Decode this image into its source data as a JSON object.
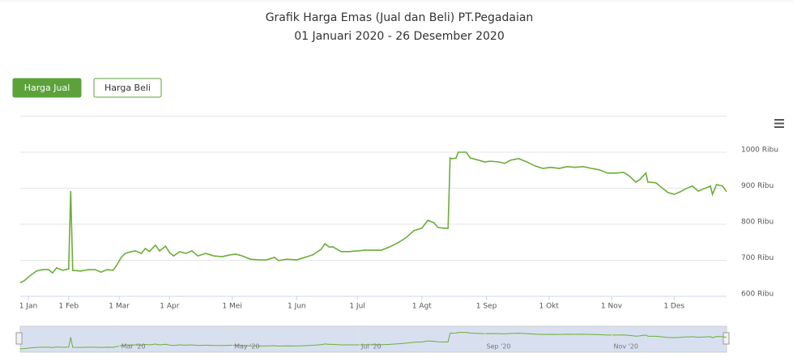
{
  "chart_data": {
    "type": "line",
    "title": "Grafik Harga Emas (Jual dan Beli) PT.Pegadaian",
    "subtitle": "01 Januari 2020 - 26 Desember 2020",
    "buttons": [
      "Harga Jual",
      "Harga Beli"
    ],
    "color": "#6aaf35",
    "x": [
      0,
      2,
      5,
      8,
      11,
      14,
      16,
      18,
      21,
      24,
      25,
      26,
      30,
      34,
      37,
      40,
      43,
      46,
      48,
      50,
      52,
      55,
      57,
      60,
      62,
      64,
      67,
      69,
      72,
      74,
      76,
      79,
      82,
      85,
      88,
      92,
      96,
      100,
      104,
      107,
      110,
      114,
      118,
      122,
      126,
      128,
      132,
      137,
      141,
      145,
      149,
      151,
      153,
      155,
      159,
      163,
      167,
      171,
      175,
      179,
      183,
      187,
      191,
      195,
      199,
      202,
      205,
      207,
      210,
      212,
      213,
      214,
      216,
      217,
      221,
      223,
      227,
      230,
      233,
      237,
      240,
      243,
      247,
      251,
      255,
      259,
      263,
      267,
      271,
      275,
      279,
      283,
      287,
      291,
      295,
      299,
      302,
      305,
      307,
      310,
      311,
      315,
      318,
      321,
      324,
      327,
      330,
      333,
      336,
      339,
      342,
      343,
      345,
      348,
      350
    ],
    "values": [
      638,
      643,
      658,
      670,
      674,
      674,
      665,
      679,
      672,
      676,
      892,
      672,
      670,
      674,
      674,
      667,
      674,
      672,
      688,
      708,
      719,
      724,
      726,
      719,
      733,
      724,
      742,
      726,
      739,
      721,
      712,
      724,
      719,
      726,
      712,
      719,
      712,
      710,
      715,
      717,
      712,
      703,
      701,
      701,
      708,
      699,
      703,
      701,
      708,
      715,
      730,
      746,
      737,
      737,
      724,
      724,
      726,
      728,
      728,
      728,
      737,
      748,
      762,
      782,
      789,
      811,
      804,
      791,
      789,
      789,
      984,
      982,
      984,
      1000,
      1000,
      984,
      978,
      973,
      975,
      973,
      969,
      978,
      982,
      973,
      962,
      955,
      958,
      955,
      960,
      958,
      960,
      955,
      951,
      942,
      942,
      944,
      933,
      917,
      924,
      942,
      917,
      915,
      901,
      888,
      883,
      890,
      899,
      906,
      892,
      899,
      906,
      883,
      910,
      906,
      890
    ],
    "xlim": [
      0,
      350
    ],
    "xticks": [
      {
        "value": 4,
        "label": "1 Jan"
      },
      {
        "value": 24,
        "label": "1 Feb"
      },
      {
        "value": 49,
        "label": "1 Mar"
      },
      {
        "value": 74,
        "label": "1 Apr"
      },
      {
        "value": 105,
        "label": "1 Mei"
      },
      {
        "value": 137,
        "label": "1 Jun"
      },
      {
        "value": 167,
        "label": "1 Jul"
      },
      {
        "value": 199,
        "label": "1 Agt"
      },
      {
        "value": 231,
        "label": "1 Sep"
      },
      {
        "value": 262,
        "label": "1 Okt"
      },
      {
        "value": 293,
        "label": "1 Nov"
      },
      {
        "value": 324,
        "label": "1 Des"
      }
    ],
    "ylim": [
      600,
      1100
    ],
    "yticks": [
      {
        "value": 600,
        "label": "600 Ribu"
      },
      {
        "value": 700,
        "label": "700 Ribu"
      },
      {
        "value": 800,
        "label": "800 Ribu"
      },
      {
        "value": 900,
        "label": "900 Ribu"
      },
      {
        "value": 1000,
        "label": "1000 Ribu"
      }
    ],
    "grid": true,
    "navigator_ticks": [
      {
        "value": 50,
        "label": "Mar '20"
      },
      {
        "value": 106,
        "label": "May '20"
      },
      {
        "value": 169,
        "label": "Jul '20"
      },
      {
        "value": 231,
        "label": "Sep '20"
      },
      {
        "value": 294,
        "label": "Nov '20"
      }
    ]
  }
}
